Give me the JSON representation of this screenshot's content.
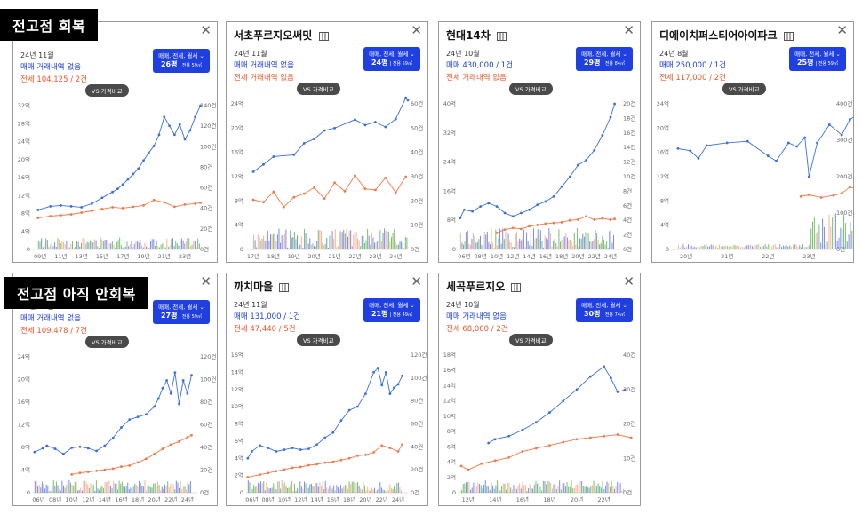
{
  "sections": {
    "recovered": "전고점 회복",
    "not_recovered": "전고점 아직 안회복"
  },
  "colors": {
    "sale": "#3b6fe0",
    "rent": "#f07a4a",
    "volume_sale": "#5a6ee8",
    "volume_rent": "#f2a07a",
    "volume_other": "#55b048",
    "filter_bg": "#1f3fe0"
  },
  "cards": [
    {
      "name": "",
      "date": "24년 11월",
      "sale": "매매 거래내역 없음",
      "rent": "전세 104,125 / 2건",
      "filter_label": "매매, 전세, 월세",
      "size": "26평",
      "area": "| 전용 59㎡",
      "vs": "VS 가격비교"
    },
    {
      "name": "서초푸르지오써밋",
      "date": "24년 11월",
      "sale": "매매 거래내역 없음",
      "rent": "전세 거래내역 없음",
      "filter_label": "매매, 전세, 월세",
      "size": "24평",
      "area": "| 전용 59㎡",
      "vs": "VS 가격비교"
    },
    {
      "name": "현대14차",
      "date": "24년 10월",
      "sale": "매매 430,000 / 1건",
      "rent": "전세 거래내역 없음",
      "filter_label": "매매, 전세, 월세",
      "size": "29평",
      "area": "| 전용 84㎡",
      "vs": "VS 가격비교"
    },
    {
      "name": "디에이치퍼스티어아이파크",
      "date": "24년 8월",
      "sale": "매매 250,000 / 1건",
      "rent": "전세 117,000 / 2건",
      "filter_label": "매매, 전세, 월세",
      "size": "25평",
      "area": "| 전용 59㎡",
      "vs": "VS 가격비교"
    },
    {
      "name": "",
      "date": "24년 11월",
      "sale": "매매 거래내역 없음",
      "rent": "전세 109,478 / 7건",
      "filter_label": "매매, 전세, 월세",
      "size": "27평",
      "area": "| 전용 59㎡",
      "vs": "VS 가격비교"
    },
    {
      "name": "까치마을",
      "date": "24년 11월",
      "sale": "매매 131,000 / 1건",
      "rent": "전세 47,440 / 5건",
      "filter_label": "매매, 전세, 월세",
      "size": "21평",
      "area": "| 전용 49㎡",
      "vs": "VS 가격비교"
    },
    {
      "name": "세곡푸르지오",
      "date": "24년 10월",
      "sale": "매매 거래내역 없음",
      "rent": "전세 68,000 / 2건",
      "filter_label": "매매, 전세, 월세",
      "size": "30평",
      "area": "| 전용 74㎡",
      "vs": "VS 가격비교"
    }
  ],
  "chart_data": [
    {
      "type": "line",
      "y_ticks": [
        "32억",
        "28억",
        "24억",
        "20억",
        "16억",
        "12억",
        "8억",
        "4억",
        "0"
      ],
      "y2_ticks": [
        "140건",
        "120건",
        "100건",
        "80건",
        "60건",
        "40건",
        "20건",
        "0건"
      ],
      "x_ticks": [
        "09년",
        "11년",
        "13년",
        "15년",
        "17년",
        "19년",
        "21년",
        "23년"
      ],
      "y_max": 32,
      "y2_max": 140,
      "series": [
        {
          "x": [
            2008.8,
            2010,
            2011,
            2012,
            2013,
            2014,
            2015,
            2016,
            2016.5,
            2017,
            2017.5,
            2018,
            2018.5,
            2019,
            2019.5,
            2020,
            2020.5,
            2021,
            2021.5,
            2022,
            2022.5,
            2023,
            2023.5,
            2024,
            2024.5
          ],
          "y": [
            8.8,
            9.6,
            9.8,
            9.6,
            9.4,
            10.2,
            11.5,
            12.8,
            13.5,
            14.5,
            15.6,
            16.8,
            18,
            19.8,
            21.5,
            23,
            25.5,
            29.5,
            27.5,
            25.5,
            27.8,
            24.5,
            26.5,
            29.5,
            32
          ]
        },
        {
          "x": [
            2008.8,
            2010,
            2011,
            2012,
            2013,
            2014,
            2015,
            2016,
            2017,
            2018,
            2019,
            2020,
            2021,
            2022,
            2023,
            2024,
            2024.5
          ],
          "y": [
            7,
            7.4,
            7.6,
            7.8,
            8.2,
            8.6,
            9,
            9.4,
            9.2,
            9.5,
            9.8,
            11,
            10.5,
            9.5,
            10,
            10.2,
            10.4
          ]
        }
      ]
    },
    {
      "type": "line",
      "y_ticks": [
        "24억",
        "20억",
        "16억",
        "12억",
        "8억",
        "4억",
        "0"
      ],
      "y2_ticks": [
        "60건",
        "50건",
        "40건",
        "30건",
        "20건",
        "10건",
        "0건"
      ],
      "x_ticks": [
        "17년",
        "18년",
        "19년",
        "20년",
        "21년",
        "22년",
        "23년",
        "24년"
      ],
      "y_max": 24,
      "y2_max": 60,
      "series": [
        {
          "x": [
            2017,
            2017.5,
            2018,
            2019,
            2019.5,
            2020,
            2020.5,
            2021,
            2022,
            2022.5,
            2023,
            2023.5,
            2024,
            2024.5,
            2024.6
          ],
          "y": [
            12.8,
            14,
            15.3,
            15.6,
            17.5,
            18.2,
            19.6,
            20,
            21.4,
            20.5,
            21,
            20.2,
            21.5,
            25,
            24.6
          ]
        },
        {
          "x": [
            2017,
            2017.5,
            2018,
            2018.5,
            2019,
            2019.5,
            2020,
            2020.5,
            2021,
            2021.5,
            2022,
            2022.5,
            2023,
            2023.5,
            2024,
            2024.5
          ],
          "y": [
            8.2,
            7.8,
            9.5,
            7,
            8.6,
            9.2,
            10.2,
            8.4,
            11,
            9.6,
            12.2,
            10,
            9.8,
            11.8,
            9.4,
            12
          ]
        }
      ]
    },
    {
      "type": "line",
      "y_ticks": [
        "40억",
        "32억",
        "24억",
        "16억",
        "8억",
        "0"
      ],
      "y2_ticks": [
        "20건",
        "18건",
        "16건",
        "14건",
        "12건",
        "10건",
        "8건",
        "6건",
        "4건",
        "2건",
        "0건"
      ],
      "x_ticks": [
        "06년",
        "08년",
        "10년",
        "12년",
        "14년",
        "16년",
        "18년",
        "20년",
        "22년",
        "24년"
      ],
      "y_max": 44,
      "y2_max": 20,
      "series": [
        {
          "x": [
            2005.5,
            2006,
            2007,
            2008,
            2009,
            2010,
            2011,
            2012,
            2013,
            2014,
            2015,
            2016,
            2017,
            2018,
            2019,
            2020,
            2021,
            2022,
            2023,
            2024,
            2024.5
          ],
          "y": [
            9.5,
            12,
            11.5,
            13,
            14,
            13,
            11,
            10,
            11,
            12,
            13.5,
            14.5,
            16,
            19,
            22,
            25.5,
            27,
            30,
            34.5,
            40,
            44
          ]
        },
        {
          "x": [
            2010,
            2011,
            2012,
            2013,
            2014,
            2015,
            2016,
            2017,
            2018,
            2019,
            2020,
            2021,
            2022,
            2023,
            2024,
            2024.5
          ],
          "y": [
            5,
            6,
            6.5,
            6.2,
            7,
            7.4,
            7.8,
            8,
            8.2,
            8.8,
            9,
            10,
            9,
            9.4,
            9,
            9.2
          ]
        }
      ]
    },
    {
      "type": "line",
      "y_ticks": [
        "24억",
        "20억",
        "16억",
        "12억",
        "8억",
        "4억",
        "0"
      ],
      "y2_ticks": [
        "400건",
        "300건",
        "200건",
        "100건",
        "0건"
      ],
      "x_ticks": [
        "20년",
        "21년",
        "22년",
        "23년"
      ],
      "y_max": 28,
      "y2_max": 400,
      "series": [
        {
          "x": [
            2019.8,
            2020.1,
            2020.3,
            2020.5,
            2021,
            2021.5,
            2022,
            2022.2,
            2022.5,
            2022.7,
            2022.9,
            2023,
            2023.2,
            2023.5,
            2023.8,
            2024,
            2024.2
          ],
          "y": [
            19.4,
            19,
            17.5,
            20,
            20.5,
            20.8,
            18,
            17,
            20.5,
            19.8,
            21.5,
            14,
            20.5,
            24,
            22,
            25,
            26
          ]
        },
        {
          "x": [
            2022.8,
            2023,
            2023.3,
            2023.6,
            2023.8,
            2024,
            2024.2
          ],
          "y": [
            10.2,
            10.5,
            10,
            10.4,
            10.8,
            12,
            11.6
          ]
        }
      ]
    },
    {
      "type": "line",
      "y_ticks": [
        "24억",
        "20억",
        "16억",
        "12억",
        "8억",
        "4억",
        "0"
      ],
      "y2_ticks": [
        "120건",
        "100건",
        "80건",
        "60건",
        "40건",
        "20건",
        "0건"
      ],
      "x_ticks": [
        "06년",
        "08년",
        "10년",
        "12년",
        "14년",
        "16년",
        "18년",
        "20년",
        "22년",
        "24년"
      ],
      "y_max": 26,
      "y2_max": 120,
      "series": [
        {
          "x": [
            2005.5,
            2006.5,
            2007,
            2008,
            2009,
            2010,
            2011,
            2012,
            2013,
            2014,
            2015,
            2016,
            2017,
            2018,
            2019,
            2020,
            2020.5,
            2021,
            2021.5,
            2022,
            2022.5,
            2023,
            2023.5,
            2024,
            2024.5
          ],
          "y": [
            7.8,
            8.5,
            9,
            8.4,
            7.4,
            8.6,
            8.8,
            8.5,
            8,
            9,
            10.5,
            12.5,
            14,
            14.5,
            15,
            16.5,
            18,
            20,
            21.5,
            19,
            23,
            17,
            21.5,
            19,
            22.5
          ]
        },
        {
          "x": [
            2010,
            2011,
            2012,
            2013,
            2014,
            2015,
            2016,
            2017,
            2018,
            2019,
            2020,
            2021,
            2022,
            2023,
            2024,
            2024.5
          ],
          "y": [
            3.5,
            3.8,
            4,
            4.2,
            4.4,
            4.6,
            5,
            5.2,
            5.8,
            6.5,
            7.4,
            8.4,
            9.2,
            9.8,
            10.6,
            11
          ]
        }
      ]
    },
    {
      "type": "line",
      "y_ticks": [
        "16억",
        "14억",
        "12억",
        "10억",
        "8억",
        "6억",
        "4억",
        "2억",
        "0"
      ],
      "y2_ticks": [
        "120건",
        "100건",
        "80건",
        "60건",
        "40건",
        "20건",
        "0건"
      ],
      "x_ticks": [
        "06년",
        "08년",
        "10년",
        "12년",
        "14년",
        "16년",
        "18년",
        "20년",
        "22년",
        "24년"
      ],
      "y_max": 16,
      "y2_max": 120,
      "series": [
        {
          "x": [
            2005.5,
            2006,
            2007,
            2008,
            2009,
            2010,
            2011,
            2012,
            2013,
            2014,
            2015,
            2016,
            2017,
            2018,
            2019,
            2020,
            2021,
            2021.5,
            2022,
            2022.5,
            2023,
            2023.5,
            2024,
            2024.5
          ],
          "y": [
            4,
            4.8,
            5.5,
            5.2,
            4.8,
            5,
            5.2,
            5,
            5.1,
            5.6,
            6.4,
            7,
            8.4,
            9.6,
            10,
            11.5,
            14,
            14.5,
            12.5,
            14,
            11.5,
            12.2,
            12.6,
            13.6
          ]
        },
        {
          "x": [
            2005.5,
            2007,
            2008,
            2009,
            2010,
            2011,
            2012,
            2013,
            2014,
            2015,
            2016,
            2017,
            2018,
            2019,
            2020,
            2021,
            2022,
            2023,
            2024,
            2024.5
          ],
          "y": [
            1.8,
            2.1,
            2.3,
            2.5,
            2.7,
            2.9,
            3,
            3.2,
            3.3,
            3.5,
            3.6,
            3.8,
            4,
            4.3,
            4.4,
            4.7,
            5.5,
            5.2,
            4.8,
            5.6
          ]
        }
      ]
    },
    {
      "type": "line",
      "y_ticks": [
        "18억",
        "16억",
        "14억",
        "12억",
        "10억",
        "8억",
        "6억",
        "4억",
        "2억",
        "0"
      ],
      "y2_ticks": [
        "40건",
        "30건",
        "20건",
        "10건",
        "0건"
      ],
      "x_ticks": [
        "12년",
        "14년",
        "16년",
        "18년",
        "20년",
        "22년"
      ],
      "y_max": 18,
      "y2_max": 40,
      "series": [
        {
          "x": [
            2013.5,
            2014,
            2015,
            2016,
            2017,
            2018,
            2019,
            2020,
            2021,
            2022,
            2022.5,
            2023,
            2023.5
          ],
          "y": [
            6.5,
            7,
            7.4,
            8.2,
            9.2,
            10.5,
            12,
            13.5,
            15.2,
            16.5,
            15,
            13.2,
            13.4
          ]
        },
        {
          "x": [
            2011.5,
            2012,
            2013,
            2014,
            2015,
            2016,
            2017,
            2018,
            2019,
            2020,
            2021,
            2022,
            2023,
            2024
          ],
          "y": [
            3.5,
            3,
            3.8,
            4.2,
            4.6,
            5.4,
            5.8,
            6.2,
            6.6,
            7,
            7.2,
            7.4,
            7.6,
            7.2
          ]
        }
      ]
    }
  ]
}
